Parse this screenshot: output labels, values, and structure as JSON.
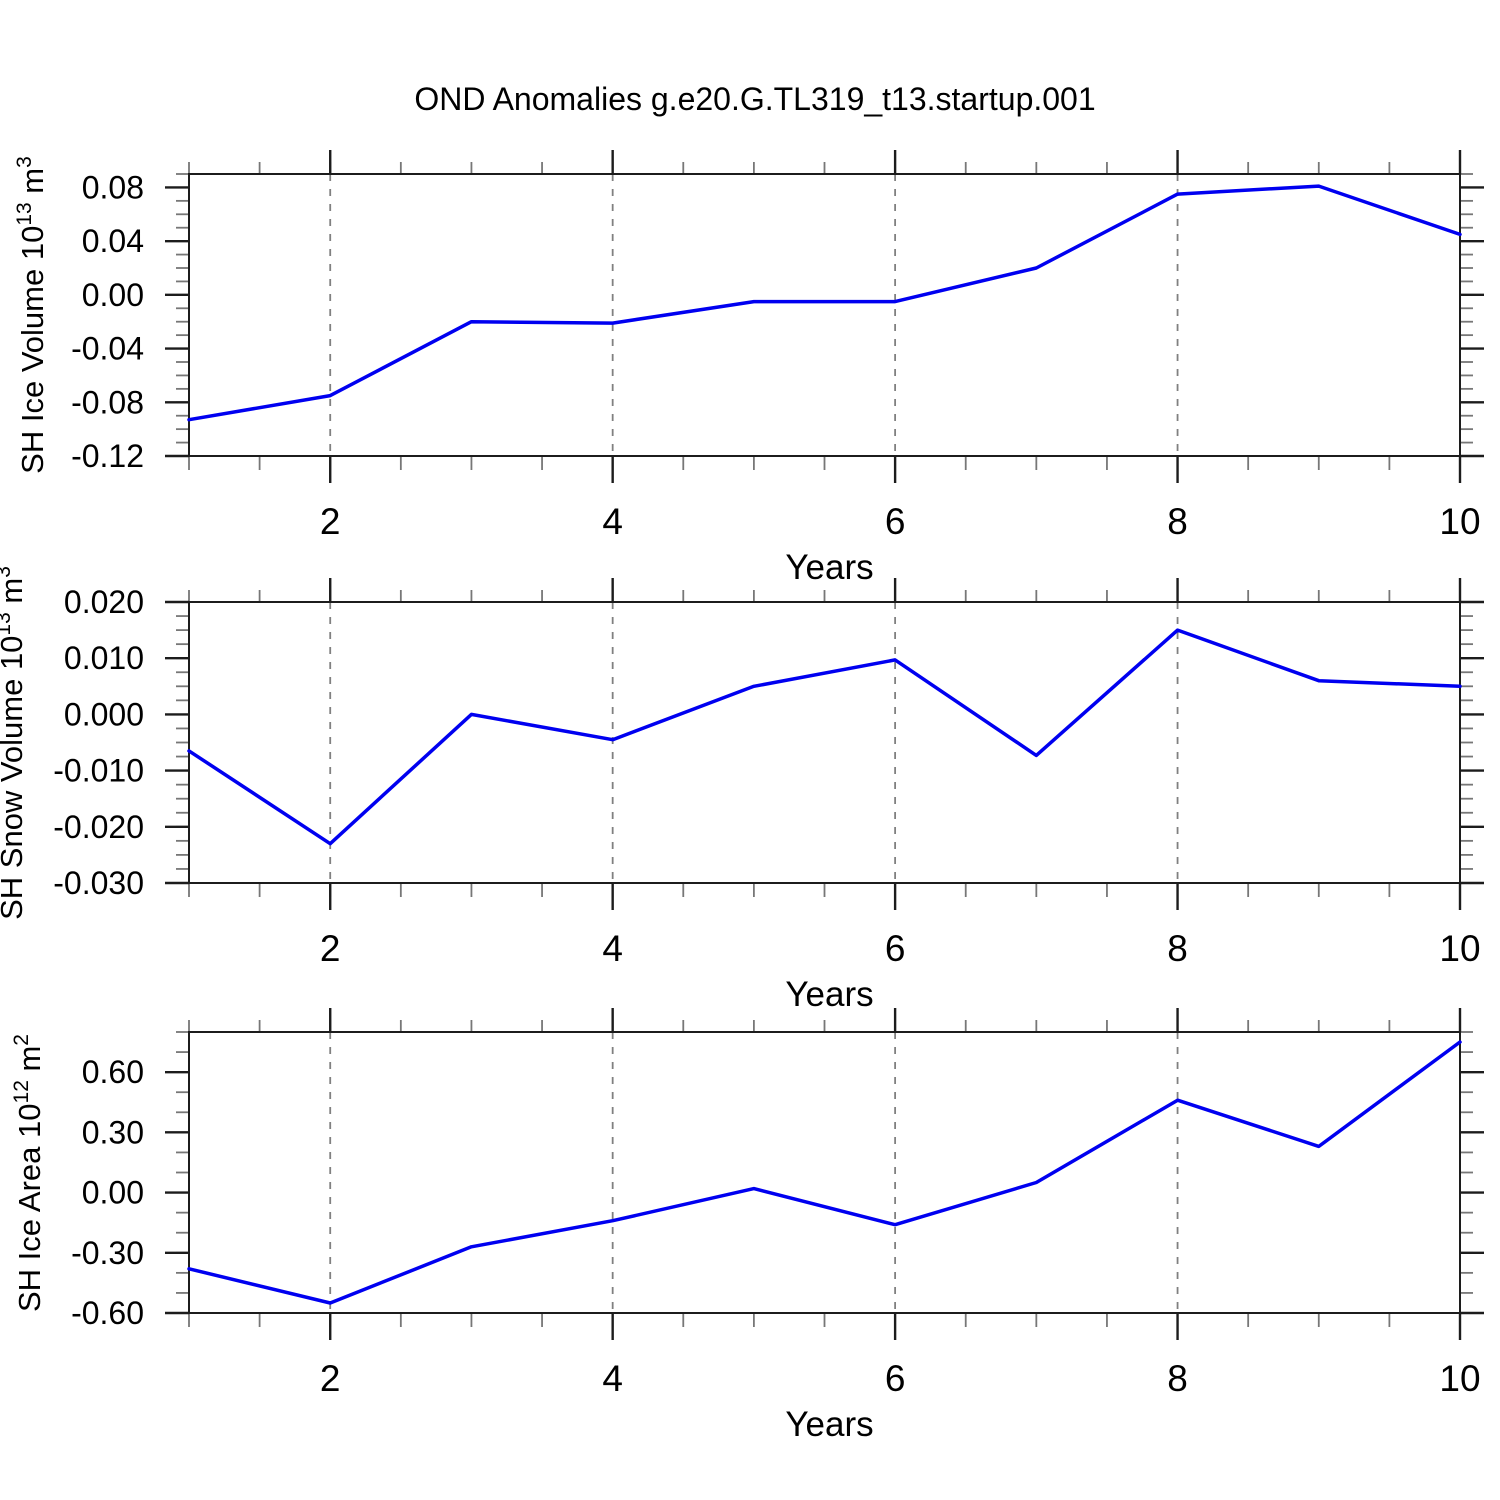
{
  "title": "OND Anomalies g.e20.G.TL319_t13.startup.001",
  "colors": {
    "line": "#0000f0",
    "grid": "#808080",
    "axis": "#1c1c1c",
    "minor_tick": "#777777",
    "text": "#000000"
  },
  "chart_data": [
    {
      "type": "line",
      "name": "sh-ice-volume",
      "ylabel": "SH Ice Volume 10^13 m^3",
      "ylabel_parts": [
        [
          "SH Ice Volume 10",
          false
        ],
        [
          "13",
          true
        ],
        [
          " m",
          false
        ],
        [
          "3",
          true
        ]
      ],
      "xlabel": "Years",
      "x": [
        1,
        2,
        3,
        4,
        5,
        6,
        7,
        8,
        9,
        10
      ],
      "values": [
        -0.093,
        -0.075,
        -0.02,
        -0.021,
        -0.005,
        -0.005,
        0.02,
        0.075,
        0.081,
        0.045
      ],
      "xlim": [
        1,
        10
      ],
      "ylim": [
        -0.12,
        0.09
      ],
      "xtick_values": [
        2,
        4,
        6,
        8,
        10
      ],
      "xtick_labels": [
        "2",
        "4",
        "6",
        "8",
        "10"
      ],
      "xtick_minor_step": 0.5,
      "ytick_values": [
        0.08,
        0.04,
        0.0,
        -0.04,
        -0.08,
        -0.12
      ],
      "ytick_labels": [
        "0.08",
        "0.04",
        "0.00",
        "-0.04",
        "-0.08",
        "-0.12"
      ],
      "ytick_minor_step": 0.01,
      "gridlines_x": [
        2,
        4,
        6,
        8
      ],
      "grid_style": "dashed-vertical",
      "legend": "none"
    },
    {
      "type": "line",
      "name": "sh-snow-volume",
      "ylabel": "SH Snow Volume 10^13 m^3",
      "ylabel_parts": [
        [
          "SH Snow Volume 10",
          false
        ],
        [
          "13",
          true
        ],
        [
          " m",
          false
        ],
        [
          "3",
          true
        ]
      ],
      "xlabel": "Years",
      "x": [
        1,
        2,
        3,
        4,
        5,
        6,
        7,
        8,
        9,
        10
      ],
      "values": [
        -0.0065,
        -0.023,
        0.0,
        -0.0045,
        0.005,
        0.0097,
        -0.0073,
        0.015,
        0.006,
        0.005
      ],
      "xlim": [
        1,
        10
      ],
      "ylim": [
        -0.03,
        0.02
      ],
      "xtick_values": [
        2,
        4,
        6,
        8,
        10
      ],
      "xtick_labels": [
        "2",
        "4",
        "6",
        "8",
        "10"
      ],
      "xtick_minor_step": 0.5,
      "ytick_values": [
        0.02,
        0.01,
        0.0,
        -0.01,
        -0.02,
        -0.03
      ],
      "ytick_labels": [
        "0.020",
        "0.010",
        "0.000",
        "-0.010",
        "-0.020",
        "-0.030"
      ],
      "ytick_minor_step": 0.0025,
      "gridlines_x": [
        2,
        4,
        6,
        8
      ],
      "grid_style": "dashed-vertical",
      "legend": "none"
    },
    {
      "type": "line",
      "name": "sh-ice-area",
      "ylabel": "SH Ice Area 10^12 m^2",
      "ylabel_parts": [
        [
          "SH Ice Area 10",
          false
        ],
        [
          "12",
          true
        ],
        [
          " m",
          false
        ],
        [
          "2",
          true
        ]
      ],
      "xlabel": "Years",
      "x": [
        1,
        2,
        3,
        4,
        5,
        6,
        7,
        8,
        9,
        10
      ],
      "values": [
        -0.38,
        -0.55,
        -0.27,
        -0.14,
        0.02,
        -0.16,
        0.05,
        0.46,
        0.23,
        0.75
      ],
      "xlim": [
        1,
        10
      ],
      "ylim": [
        -0.6,
        0.8
      ],
      "xtick_values": [
        2,
        4,
        6,
        8,
        10
      ],
      "xtick_labels": [
        "2",
        "4",
        "6",
        "8",
        "10"
      ],
      "xtick_minor_step": 0.5,
      "ytick_values": [
        0.6,
        0.3,
        0.0,
        -0.3,
        -0.6
      ],
      "ytick_labels": [
        "0.60",
        "0.30",
        "0.00",
        "-0.30",
        "-0.60"
      ],
      "ytick_minor_step": 0.1,
      "gridlines_x": [
        2,
        4,
        6,
        8
      ],
      "grid_style": "dashed-vertical",
      "legend": "none"
    }
  ]
}
